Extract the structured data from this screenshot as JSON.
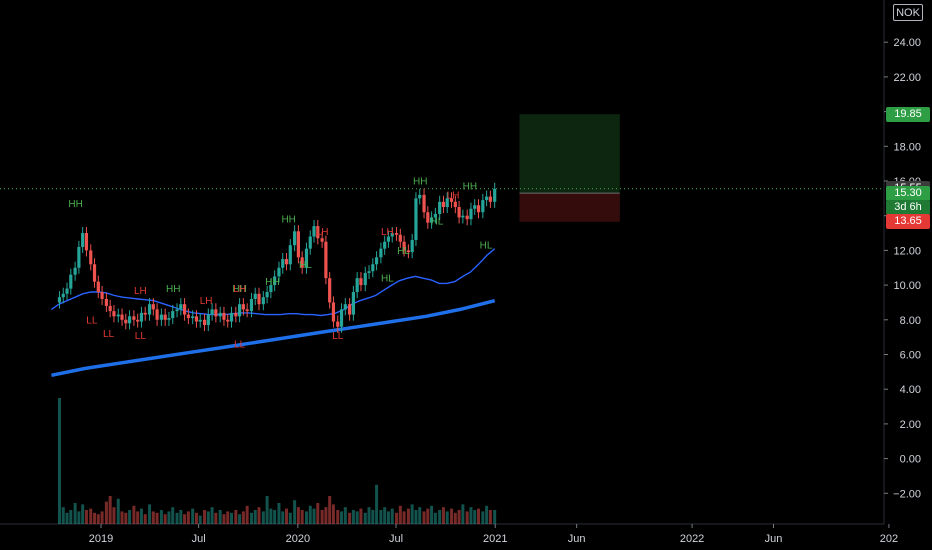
{
  "symbol": "NOK",
  "colors": {
    "background": "#000000",
    "up": "#26a69a",
    "down": "#ef5350",
    "ma_short": "#2962ff",
    "ma_long": "#1e6fe8",
    "target_zone": "#0e2a12",
    "stop_zone": "#3b0d0d",
    "tag_green": "#2e9e45",
    "tag_red": "#e53935",
    "tag_gray": "#3b3b3b",
    "swing_green": "#4caf50",
    "swing_red": "#e53935"
  },
  "price_tags": [
    {
      "label": "19.85",
      "value": 19.85,
      "color": "#2e9e45"
    },
    {
      "label": "15.55",
      "value": 15.55,
      "color": "#3b3b3b"
    },
    {
      "label": "15.30",
      "value": 15.3,
      "color": "#2e9e45"
    },
    {
      "label": "3d 6h",
      "value": 14.45,
      "color": "#1f7a34"
    },
    {
      "label": "13.65",
      "value": 13.65,
      "color": "#e53935"
    }
  ],
  "chart_data": {
    "type": "candlestick",
    "symbol": "NOK",
    "y_axis": {
      "position": "right",
      "range": [
        -3.8,
        26.0
      ],
      "ticks": [
        "24.00",
        "22.00",
        "20.00",
        "18.00",
        "16.00",
        "14.00",
        "12.00",
        "10.00",
        "8.00",
        "6.00",
        "4.00",
        "2.00",
        "0.00",
        "−2.00"
      ],
      "tick_values": [
        24,
        22,
        20,
        18,
        16,
        14,
        12,
        10,
        8,
        6,
        4,
        2,
        0,
        -2
      ]
    },
    "x_axis": {
      "ticks": [
        {
          "label": "2019",
          "date": "2019-01"
        },
        {
          "label": "Jul",
          "date": "2019-07"
        },
        {
          "label": "2020",
          "date": "2020-01"
        },
        {
          "label": "Jul",
          "date": "2020-07"
        },
        {
          "label": "2021",
          "date": "2021-01"
        },
        {
          "label": "Jun",
          "date": "2021-06"
        },
        {
          "label": "2022",
          "date": "2022-01"
        },
        {
          "label": "Jun",
          "date": "2022-06"
        },
        {
          "label": "202",
          "date": "2023-01"
        }
      ]
    },
    "last_price": 15.55,
    "position_tool": {
      "entry": 15.3,
      "target": 19.85,
      "stop": 13.65,
      "start_date": "2021-02-15",
      "end_date": "2021-08-20"
    },
    "candles_close": [
      9.3,
      9.5,
      9.8,
      10.6,
      11.0,
      12.2,
      13.0,
      12.0,
      11.2,
      10.2,
      9.6,
      9.2,
      8.8,
      8.5,
      8.2,
      8.3,
      8.0,
      7.8,
      8.2,
      8.0,
      7.9,
      8.4,
      8.3,
      8.9,
      8.6,
      8.0,
      8.3,
      8.0,
      8.1,
      8.5,
      8.6,
      8.9,
      8.3,
      8.1,
      8.2,
      7.9,
      8.0,
      7.7,
      8.3,
      8.6,
      8.2,
      8.4,
      8.0,
      7.9,
      8.4,
      8.2,
      8.9,
      8.6,
      8.5,
      9.2,
      9.5,
      8.9,
      9.3,
      9.6,
      10.0,
      10.5,
      11.0,
      11.5,
      11.2,
      12.3,
      13.1,
      11.6,
      11.0,
      12.1,
      12.8,
      13.4,
      12.7,
      12.5,
      10.4,
      9.0,
      7.9,
      7.6,
      8.6,
      8.9,
      8.3,
      9.6,
      10.4,
      10.0,
      10.7,
      10.8,
      11.2,
      11.6,
      12.1,
      12.5,
      12.8,
      13.0,
      12.9,
      12.5,
      12.0,
      11.9,
      12.6,
      15.0,
      15.2,
      14.2,
      13.6,
      13.9,
      14.1,
      14.8,
      14.5,
      15.0,
      14.8,
      14.5,
      13.9,
      14.0,
      13.8,
      14.4,
      14.6,
      14.2,
      14.9,
      15.1,
      14.8,
      15.55
    ],
    "volumes": [
      0.9,
      0.12,
      0.08,
      0.1,
      0.15,
      0.09,
      0.14,
      0.1,
      0.11,
      0.08,
      0.07,
      0.09,
      0.16,
      0.2,
      0.12,
      0.18,
      0.09,
      0.08,
      0.1,
      0.13,
      0.09,
      0.11,
      0.07,
      0.14,
      0.09,
      0.08,
      0.1,
      0.07,
      0.09,
      0.12,
      0.08,
      0.1,
      0.07,
      0.09,
      0.11,
      0.08,
      0.06,
      0.1,
      0.09,
      0.12,
      0.08,
      0.1,
      0.07,
      0.09,
      0.08,
      0.1,
      0.07,
      0.09,
      0.13,
      0.08,
      0.1,
      0.12,
      0.09,
      0.2,
      0.11,
      0.1,
      0.15,
      0.09,
      0.11,
      0.08,
      0.17,
      0.12,
      0.1,
      0.09,
      0.13,
      0.11,
      0.15,
      0.1,
      0.12,
      0.2,
      0.14,
      0.1,
      0.09,
      0.12,
      0.08,
      0.1,
      0.09,
      0.11,
      0.08,
      0.12,
      0.1,
      0.28,
      0.1,
      0.12,
      0.09,
      0.11,
      0.08,
      0.13,
      0.09,
      0.11,
      0.14,
      0.1,
      0.12,
      0.09,
      0.11,
      0.13,
      0.08,
      0.1,
      0.12,
      0.09,
      0.11,
      0.08,
      0.1,
      0.14,
      0.09,
      0.12,
      0.1,
      0.11,
      0.09,
      0.13,
      0.1,
      0.1
    ],
    "ma_short": [
      8.6,
      8.9,
      9.1,
      9.3,
      9.5,
      9.6,
      9.6,
      9.55,
      9.4,
      9.3,
      9.25,
      9.2,
      9.15,
      9.1,
      8.95,
      8.8,
      8.65,
      8.5,
      8.4,
      8.35,
      8.3,
      8.3,
      8.3,
      8.35,
      8.4,
      8.4,
      8.35,
      8.3,
      8.3,
      8.3,
      8.35,
      8.35,
      8.3,
      8.3,
      8.25,
      8.3,
      8.4,
      8.6,
      8.9,
      9.1,
      9.25,
      9.4,
      9.7,
      10.0,
      10.25,
      10.4,
      10.5,
      10.4,
      10.3,
      10.1,
      10.1,
      10.2,
      10.5,
      10.75,
      11.2,
      11.7,
      12.1
    ],
    "ma_long": [
      4.8,
      5.2,
      5.5,
      5.8,
      6.1,
      6.4,
      6.7,
      7.0,
      7.3,
      7.6,
      7.9,
      8.2,
      8.6,
      9.1
    ],
    "swing_labels": [
      {
        "text": "HH",
        "color": "green",
        "date": "2018-11",
        "price": 14.5
      },
      {
        "text": "LL",
        "color": "red",
        "date": "2018-12",
        "price": 7.8
      },
      {
        "text": "LL",
        "color": "red",
        "date": "2019-01",
        "price": 7.0
      },
      {
        "text": "LH",
        "color": "red",
        "date": "2019-03",
        "price": 9.5
      },
      {
        "text": "LL",
        "color": "red",
        "date": "2019-03",
        "price": 6.9
      },
      {
        "text": "HH",
        "color": "green",
        "date": "2019-05",
        "price": 9.6
      },
      {
        "text": "LH",
        "color": "red",
        "date": "2019-07",
        "price": 8.9
      },
      {
        "text": "HH",
        "color": "green",
        "date": "2019-09",
        "price": 9.6
      },
      {
        "text": "LH",
        "color": "red",
        "date": "2019-09",
        "price": 9.6
      },
      {
        "text": "LL",
        "color": "red",
        "date": "2019-09",
        "price": 6.4
      },
      {
        "text": "HH",
        "color": "green",
        "date": "2019-11",
        "price": 10.0
      },
      {
        "text": "HH",
        "color": "green",
        "date": "2019-12",
        "price": 13.6
      },
      {
        "text": "LH",
        "color": "red",
        "date": "2020-02",
        "price": 12.9
      },
      {
        "text": "HL",
        "color": "green",
        "date": "2020-01",
        "price": 11.0
      },
      {
        "text": "LL",
        "color": "red",
        "date": "2020-03",
        "price": 6.9
      },
      {
        "text": "LH",
        "color": "red",
        "date": "2020-06",
        "price": 12.9
      },
      {
        "text": "HL",
        "color": "green",
        "date": "2020-06",
        "price": 10.2
      },
      {
        "text": "HL",
        "color": "green",
        "date": "2020-07",
        "price": 11.8
      },
      {
        "text": "HH",
        "color": "green",
        "date": "2020-08",
        "price": 15.8
      },
      {
        "text": "LH",
        "color": "red",
        "date": "2020-10",
        "price": 15.0
      },
      {
        "text": "HL",
        "color": "green",
        "date": "2020-09",
        "price": 13.5
      },
      {
        "text": "HH",
        "color": "green",
        "date": "2020-11",
        "price": 15.5
      },
      {
        "text": "HL",
        "color": "green",
        "date": "2020-12",
        "price": 12.1
      }
    ]
  }
}
